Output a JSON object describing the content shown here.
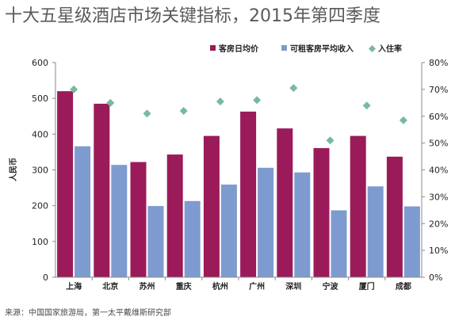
{
  "title": "十大五星级酒店市场关键指标，2015年第四季度",
  "source": "来源：中国国家旅游局，第一太平戴维斯研究部",
  "colors": {
    "adr": "#9b1b5a",
    "revpar": "#7e9bcf",
    "occ": "#79b8a2"
  },
  "chart_data": {
    "type": "bar",
    "categories": [
      "上海",
      "北京",
      "苏州",
      "重庆",
      "杭州",
      "广州",
      "深圳",
      "宁波",
      "厦门",
      "成都"
    ],
    "series": [
      {
        "name": "客房日均价",
        "type": "bar",
        "axis": "left",
        "values": [
          520,
          485,
          322,
          343,
          395,
          463,
          416,
          361,
          395,
          337
        ]
      },
      {
        "name": "可租客房平均收入",
        "type": "bar",
        "axis": "left",
        "values": [
          366,
          314,
          199,
          213,
          259,
          306,
          293,
          187,
          254,
          198
        ]
      },
      {
        "name": "入住率",
        "type": "scatter",
        "axis": "right",
        "unit": "%",
        "values": [
          70,
          65,
          61,
          62,
          65.5,
          66,
          70.5,
          51,
          64,
          58.5
        ]
      }
    ],
    "ylabel": "人民币",
    "ylim": [
      0,
      600
    ],
    "yticks": [
      "0",
      "100",
      "200",
      "300",
      "400",
      "500",
      "600"
    ],
    "y2lim": [
      0,
      80
    ],
    "y2ticks": [
      "0%",
      "10%",
      "20%",
      "30%",
      "40%",
      "50%",
      "60%",
      "70%",
      "80%"
    ],
    "legend_position": "top-right"
  }
}
